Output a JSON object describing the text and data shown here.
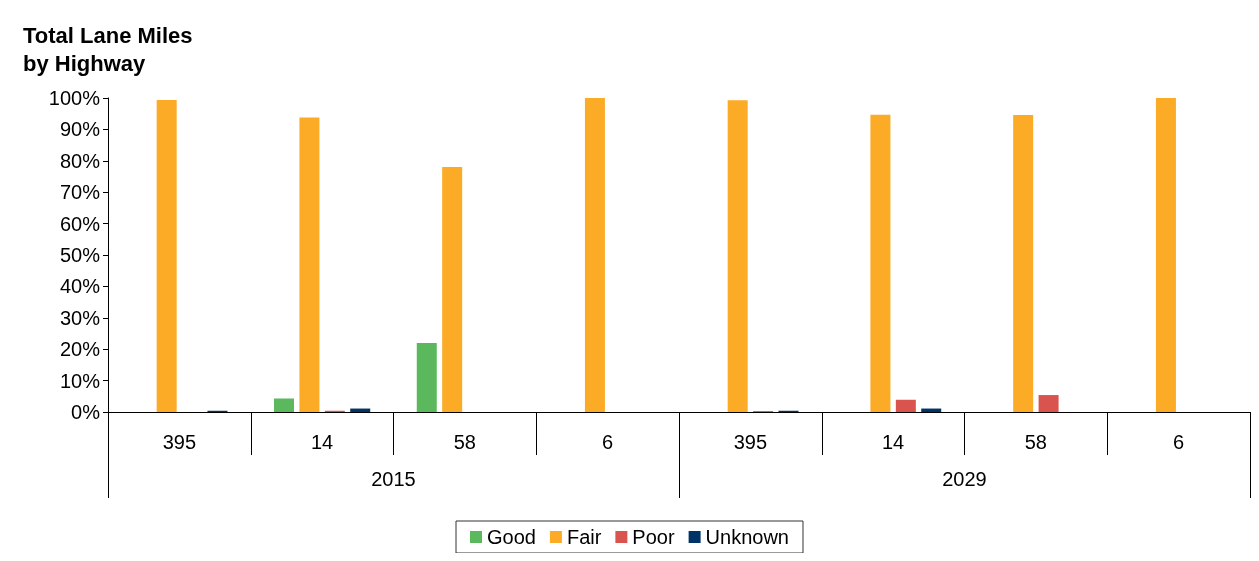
{
  "chart_data": {
    "type": "bar",
    "title": "Total Lane Miles\nby Highway",
    "categories": [
      "395",
      "14",
      "58",
      "6",
      "395",
      "14",
      "58",
      "6"
    ],
    "annotations": [
      "2015",
      "2029"
    ],
    "series": [
      {
        "name": "Good",
        "color": "#5cb85c",
        "values": [
          0,
          4.3,
          22.0,
          0,
          0,
          0,
          0,
          0
        ]
      },
      {
        "name": "Fair",
        "color": "#fbab25",
        "values": [
          99.4,
          93.8,
          78.0,
          100,
          99.3,
          94.7,
          94.6,
          100
        ]
      },
      {
        "name": "Poor",
        "color": "#d9534f",
        "values": [
          0,
          0.4,
          0,
          0,
          0.3,
          3.9,
          5.4,
          0
        ]
      },
      {
        "name": "Unknown",
        "color": "#003366",
        "values": [
          0.4,
          1.1,
          0,
          0,
          0.4,
          1.1,
          0,
          0
        ]
      }
    ],
    "ylim": [
      0,
      100
    ],
    "yticks": [
      {
        "value": 0,
        "label": "0%"
      },
      {
        "value": 10,
        "label": "10%"
      },
      {
        "value": 20,
        "label": "20%"
      },
      {
        "value": 30,
        "label": "30%"
      },
      {
        "value": 40,
        "label": "40%"
      },
      {
        "value": 50,
        "label": "50%"
      },
      {
        "value": 60,
        "label": "60%"
      },
      {
        "value": 70,
        "label": "70%"
      },
      {
        "value": 80,
        "label": "80%"
      },
      {
        "value": 90,
        "label": "90%"
      },
      {
        "value": 100,
        "label": "100%"
      }
    ],
    "grid": false,
    "legend": "bottom"
  }
}
